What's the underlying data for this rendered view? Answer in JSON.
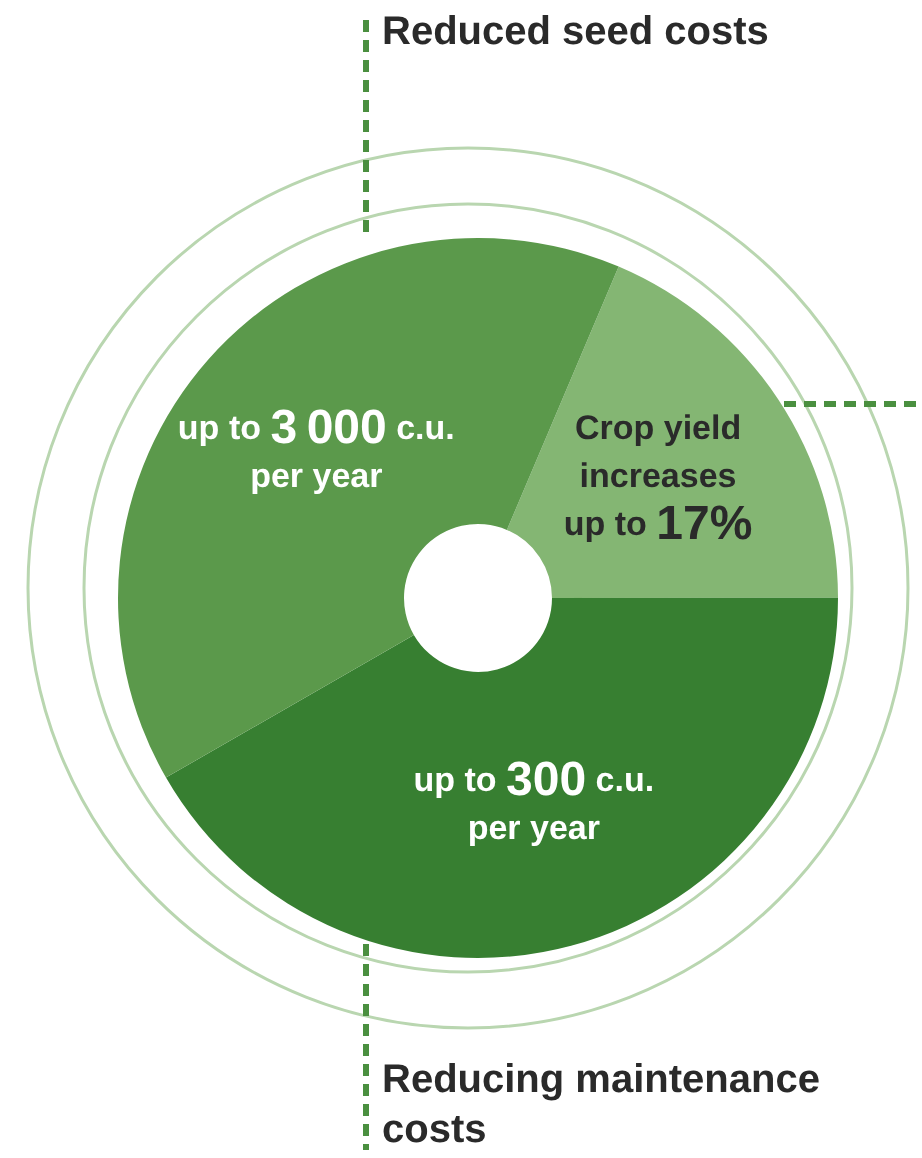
{
  "chart_data": {
    "type": "donut",
    "categories": [
      "Crop yield increases up to 17%",
      "up to 300 c.u. per year",
      "up to 3 000 c.u. per year"
    ],
    "values": [
      18.6,
      41.7,
      39.7
    ],
    "colors": [
      "#84b673",
      "#377f31",
      "#5b994b"
    ],
    "annotations": [
      "Reduced seed costs",
      "Reducing maintenance costs"
    ]
  }
}
